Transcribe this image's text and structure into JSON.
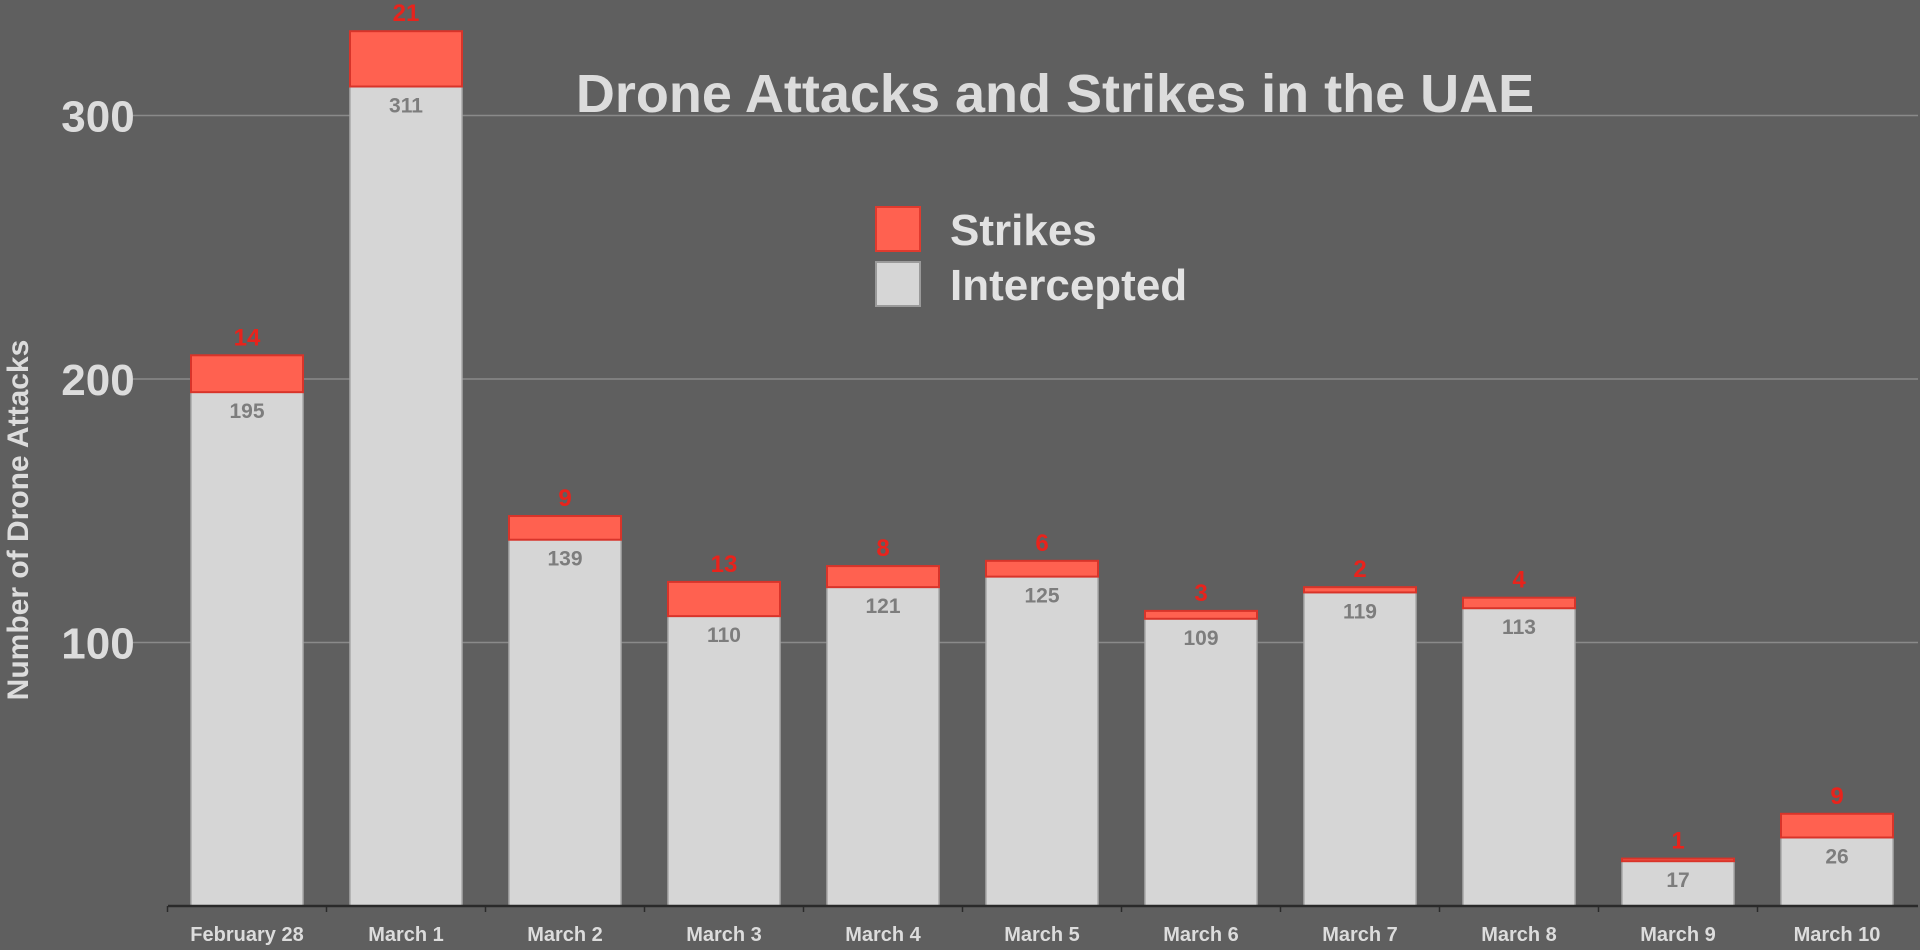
{
  "chart_data": {
    "type": "bar",
    "stacked": true,
    "title": "Drone Attacks and Strikes in the UAE",
    "xlabel": "",
    "ylabel": "Number of Drone Attacks",
    "ylim": [
      0,
      325
    ],
    "yticks": [
      100,
      200,
      300
    ],
    "grid": true,
    "legend_position": "top-center",
    "categories": [
      "February 28",
      "March 1",
      "March 2",
      "March 3",
      "March 4",
      "March 5",
      "March 6",
      "March 7",
      "March 8",
      "March 9",
      "March 10"
    ],
    "series": [
      {
        "name": "Intercepted",
        "color": "#d6d6d6",
        "values": [
          195,
          311,
          139,
          110,
          121,
          125,
          109,
          119,
          113,
          17,
          26
        ]
      },
      {
        "name": "Strikes",
        "color": "#ff6150",
        "values": [
          14,
          21,
          9,
          13,
          8,
          6,
          3,
          2,
          4,
          1,
          9
        ]
      }
    ]
  },
  "colors": {
    "background": "#5f5f5f",
    "text": "#dcdcdc",
    "grid": "#8a8a8a",
    "axis": "#2a2a2a",
    "strike_label": "#e8231c",
    "intercepted_label": "#7d7d7d"
  }
}
